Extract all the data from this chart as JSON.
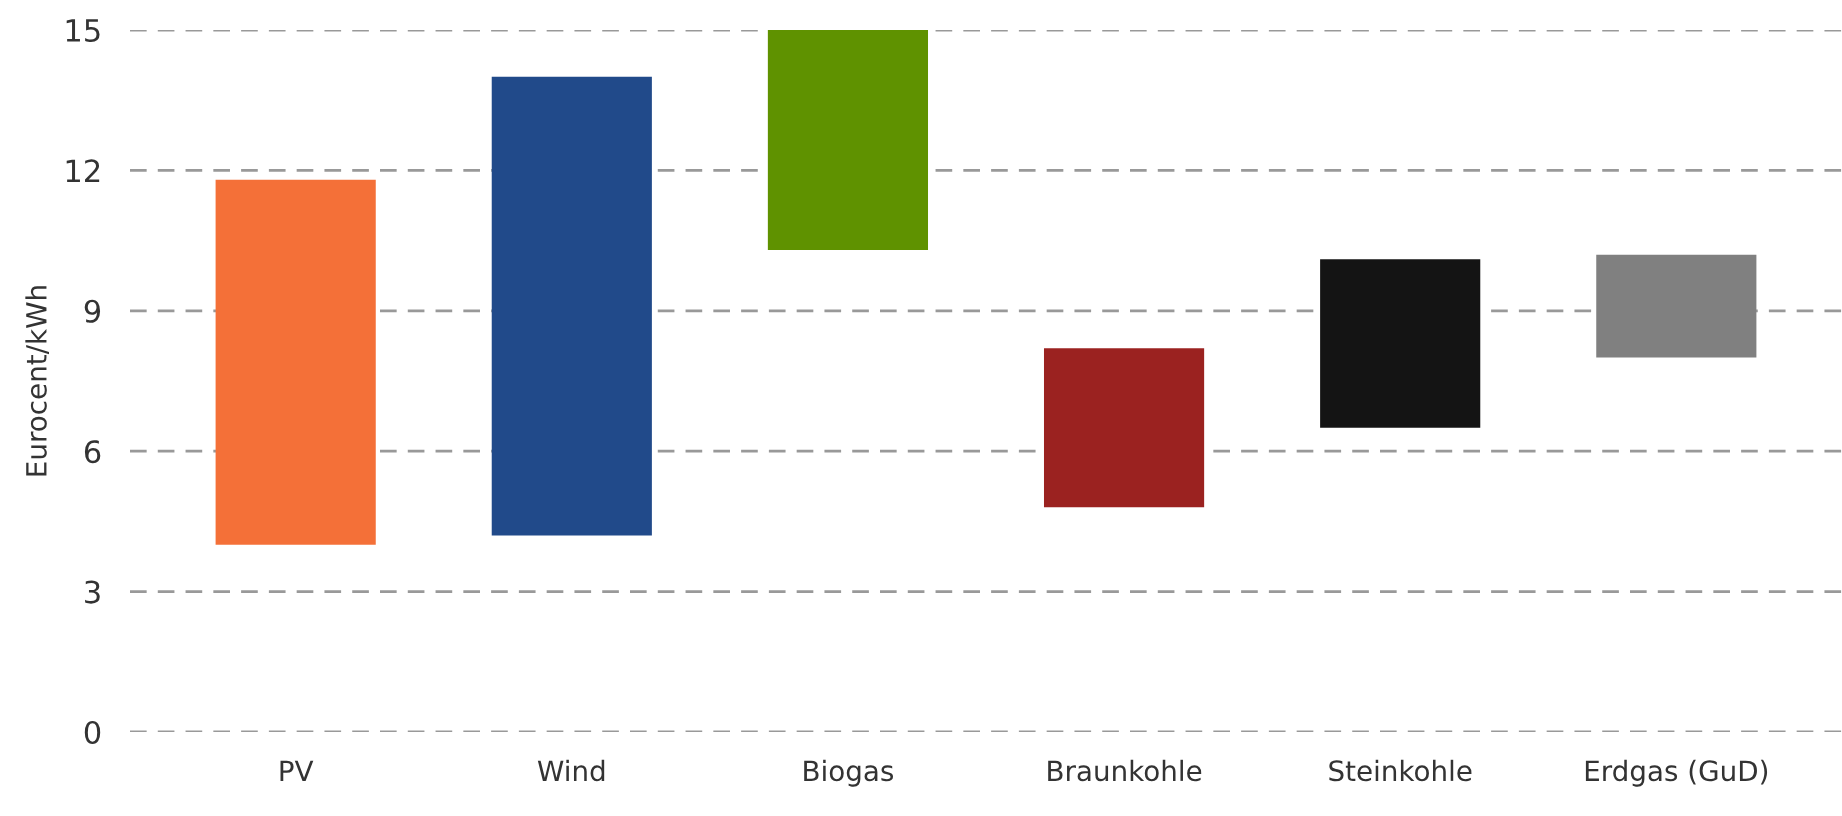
{
  "chart_data": {
    "type": "bar",
    "ylabel": "Eurocent/kWh",
    "categories": [
      "PV",
      "Wind",
      "Biogas",
      "Braunkohle",
      "Steinkohle",
      "Erdgas (GuD)"
    ],
    "base": [
      4.0,
      4.2,
      10.3,
      4.8,
      6.5,
      8.0
    ],
    "values": [
      7.8,
      9.8,
      4.7,
      3.4,
      3.6,
      2.2
    ],
    "colors": [
      "#f47038",
      "#214a8a",
      "#5f9200",
      "#9b2220",
      "#141414",
      "#808080"
    ],
    "ylim": [
      0,
      15
    ],
    "yticks": [
      0,
      3,
      6,
      9,
      12,
      15
    ],
    "grid": "y"
  }
}
